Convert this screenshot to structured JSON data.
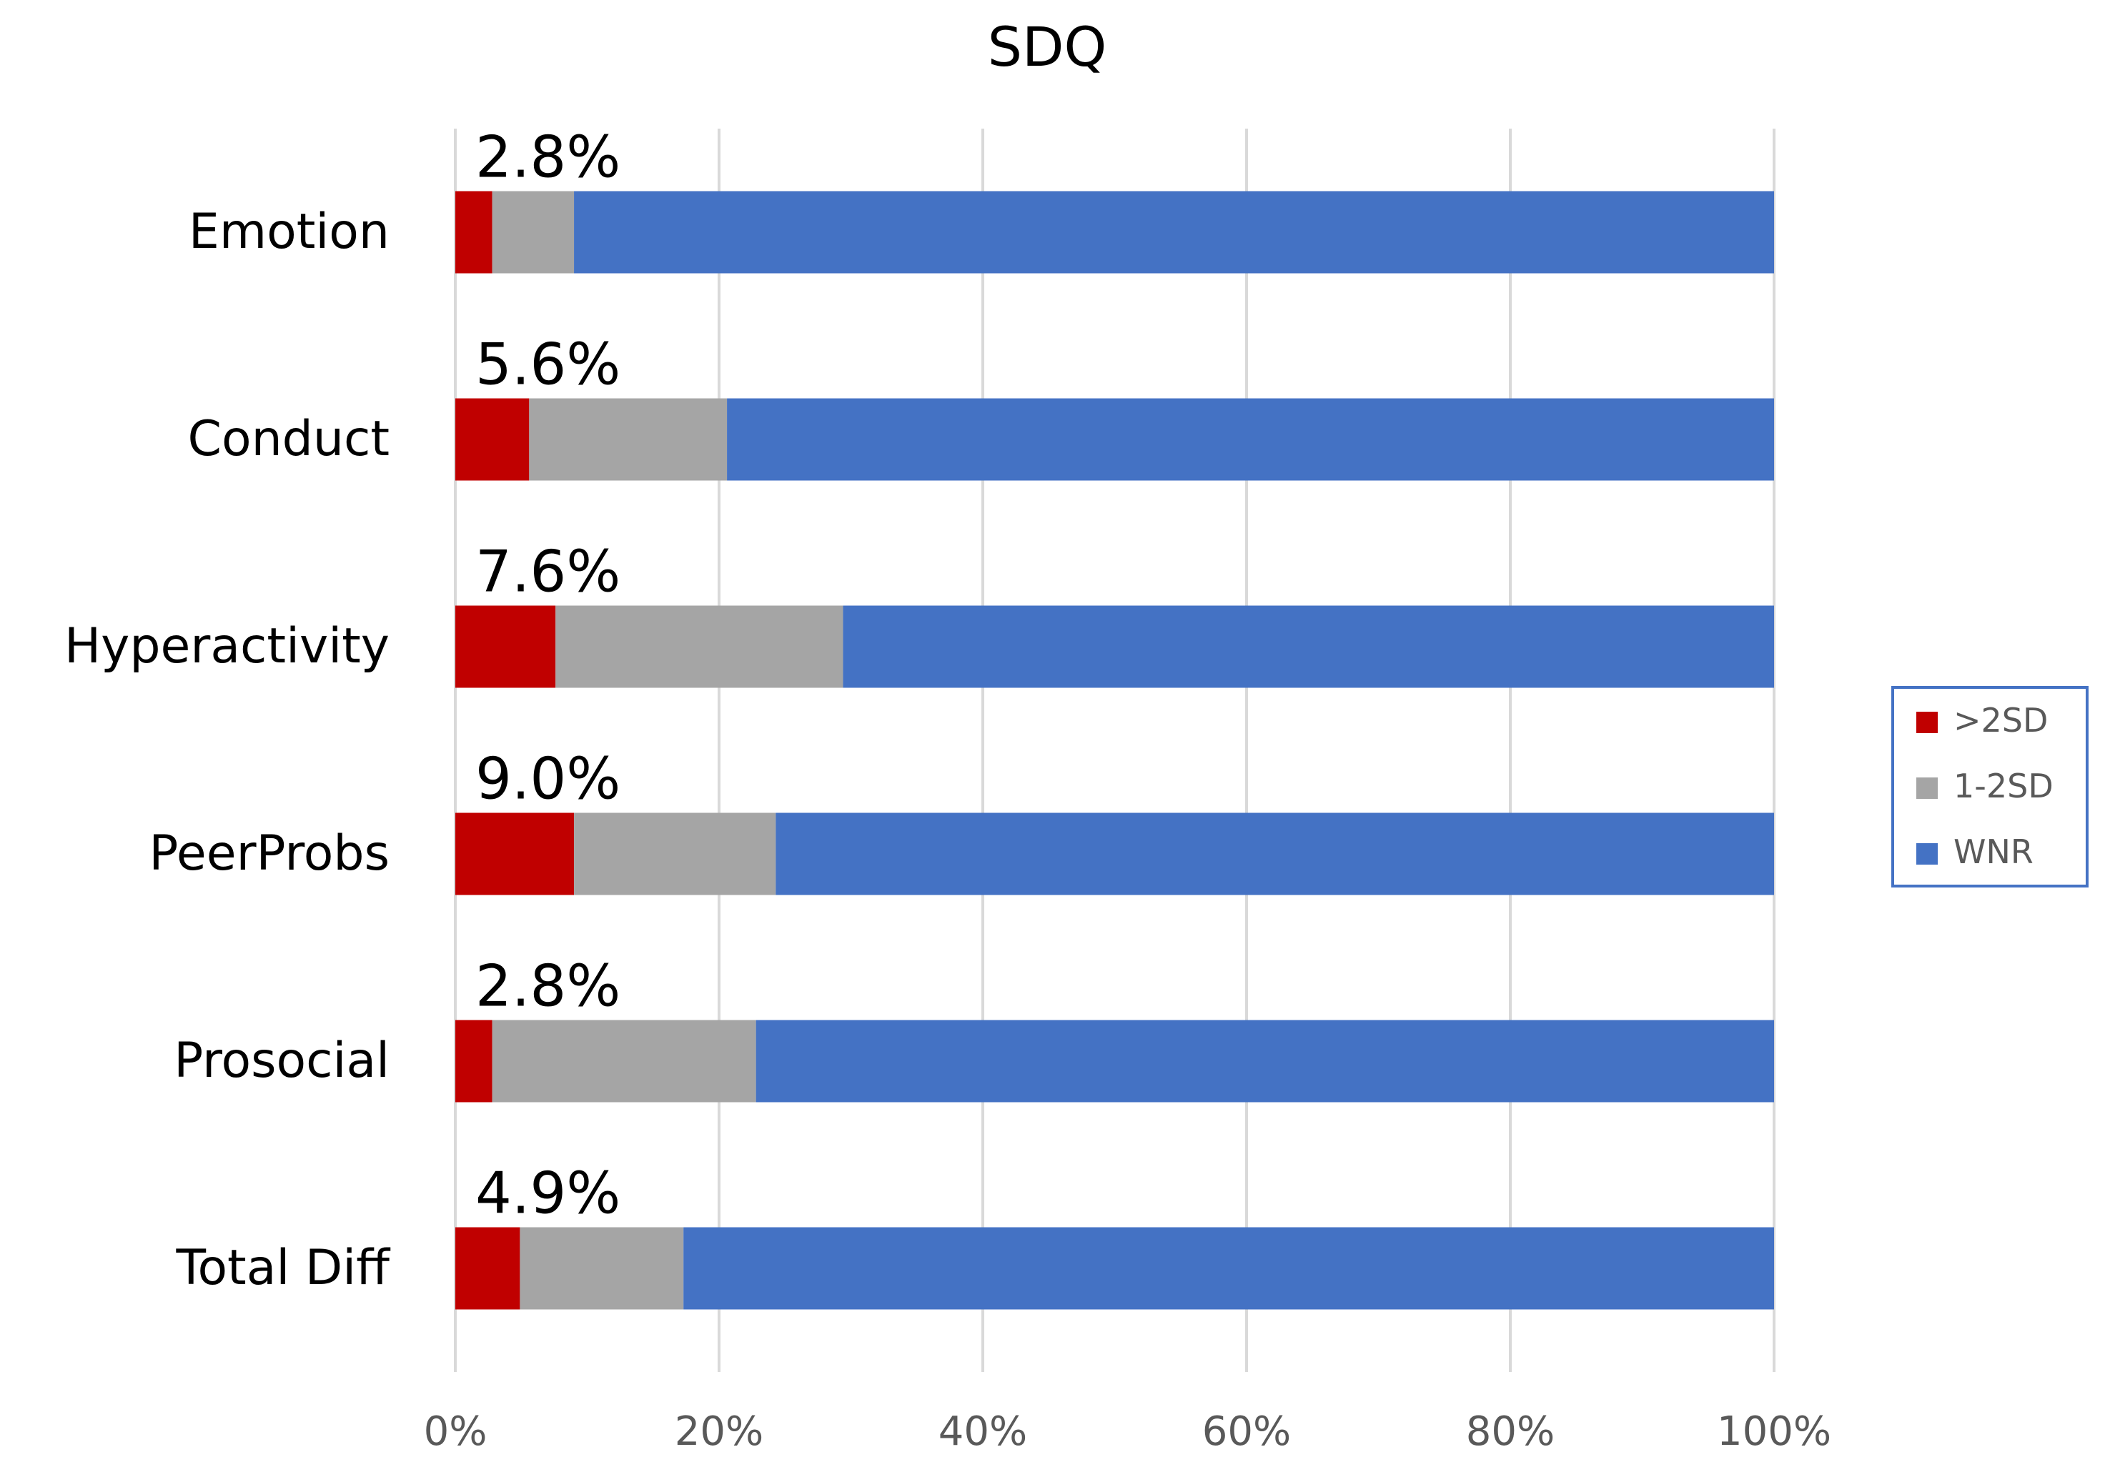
{
  "chart_data": {
    "type": "bar",
    "orientation": "horizontal",
    "stacked": "percent",
    "title": "SDQ",
    "categories": [
      "Emotion",
      "Conduct",
      "Hyperactivity",
      "PeerProbs",
      "Prosocial",
      "Total Diff"
    ],
    "series": [
      {
        "name": ">2SD",
        "color": "#C00000",
        "values": [
          2.8,
          5.6,
          7.6,
          9.0,
          2.8,
          4.9
        ]
      },
      {
        "name": "1-2SD",
        "color": "#A5A5A5",
        "values": [
          6.2,
          15.0,
          21.8,
          15.3,
          20.0,
          12.4
        ]
      },
      {
        "name": "WNR",
        "color": "#4472C4",
        "values": [
          91.0,
          79.4,
          70.6,
          75.7,
          77.2,
          82.7
        ]
      }
    ],
    "data_labels": [
      "2.8%",
      "5.6%",
      "7.6%",
      "9.0%",
      "2.8%",
      "4.9%"
    ],
    "xlim": [
      0,
      100
    ],
    "xticks": [
      0,
      20,
      40,
      60,
      80,
      100
    ],
    "xtick_labels": [
      "0%",
      "20%",
      "40%",
      "60%",
      "80%",
      "100%"
    ],
    "xlabel": "",
    "ylabel": "",
    "grid": "vertical",
    "legend_position": "right",
    "colors": {
      "grid": "#D9D9D9",
      "text": "#000000",
      "tick_text": "#595959",
      "legend_border": "#4472C4"
    }
  }
}
